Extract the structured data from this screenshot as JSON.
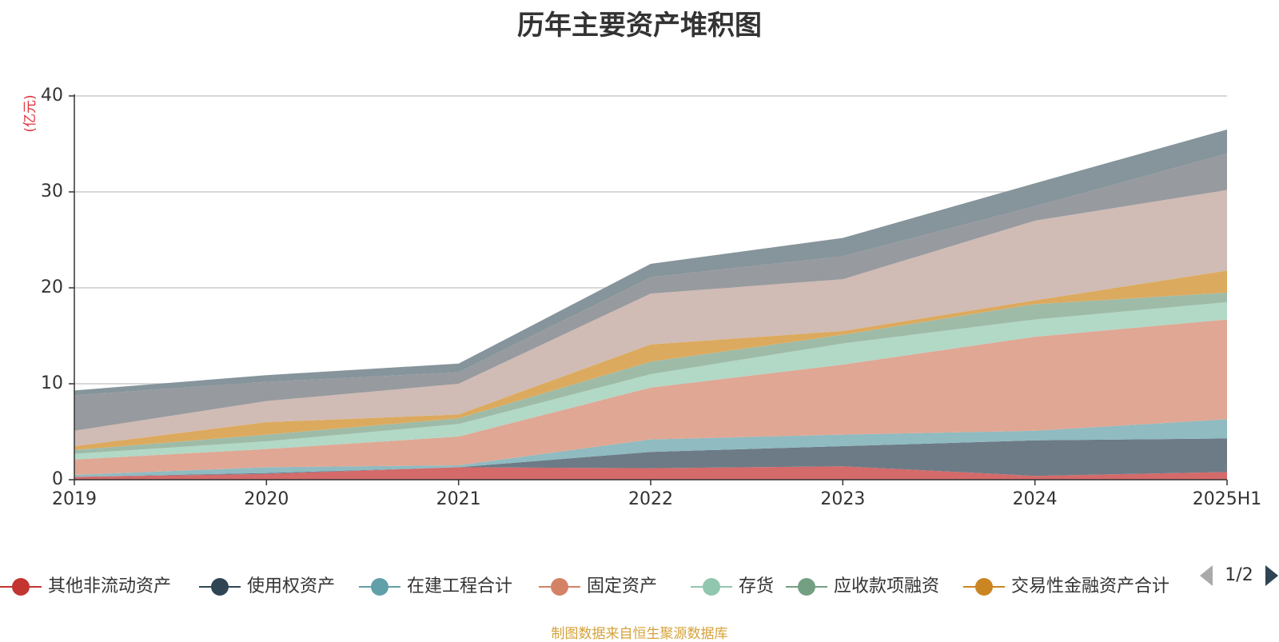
{
  "chart_data": {
    "type": "area",
    "stacked": true,
    "title": "历年主要资产堆积图",
    "ylabel": "(亿元)",
    "xlabel": "",
    "categories": [
      "2019",
      "2020",
      "2021",
      "2022",
      "2023",
      "2024",
      "2025H1"
    ],
    "ylim": [
      0,
      40
    ],
    "yticks": [
      0,
      10,
      20,
      30,
      40
    ],
    "grid": true,
    "legend_position": "bottom",
    "legend_page": "1/2",
    "series": [
      {
        "name": "其他非流动资产",
        "color": "#c23531",
        "area_color": "#d46a6a",
        "values": [
          0.3,
          0.6,
          1.3,
          1.2,
          1.4,
          0.4,
          0.8
        ]
      },
      {
        "name": "使用权资产",
        "color": "#2f4554",
        "area_color": "#6d7b86",
        "values": [
          0.0,
          0.1,
          0.0,
          1.7,
          2.1,
          3.7,
          3.5
        ]
      },
      {
        "name": "在建工程合计",
        "color": "#61a0a8",
        "area_color": "#8fbbc1",
        "values": [
          0.2,
          0.6,
          0.2,
          1.3,
          1.2,
          1.0,
          2.0
        ]
      },
      {
        "name": "固定资产",
        "color": "#d48265",
        "area_color": "#e0a794",
        "values": [
          1.6,
          1.9,
          3.0,
          5.4,
          7.3,
          9.8,
          10.4
        ]
      },
      {
        "name": "存货",
        "color": "#91c7ae",
        "area_color": "#b2d8c6",
        "values": [
          0.6,
          0.8,
          1.3,
          1.4,
          2.2,
          1.8,
          1.8
        ]
      },
      {
        "name": "应收款项融资",
        "color": "#749f83",
        "area_color": "#9ebba8",
        "values": [
          0.4,
          0.7,
          0.6,
          1.3,
          0.9,
          1.6,
          1.0
        ]
      },
      {
        "name": "交易性金融资产合计",
        "color": "#ca8622",
        "area_color": "#dcaa5e",
        "values": [
          0.4,
          1.3,
          0.4,
          1.8,
          0.4,
          0.4,
          2.3
        ]
      },
      {
        "name": "",
        "color": "#bda29a",
        "area_color": "#d0bbb5",
        "values": [
          1.6,
          2.2,
          3.2,
          5.3,
          5.4,
          8.3,
          8.4
        ]
      },
      {
        "name": "",
        "color": "#6e7074",
        "area_color": "#979a9e",
        "values": [
          3.7,
          2.0,
          1.2,
          1.7,
          2.4,
          1.5,
          3.8
        ]
      },
      {
        "name": "",
        "color": "#546570",
        "area_color": "#86949b",
        "values": [
          0.5,
          0.7,
          0.9,
          1.4,
          1.9,
          2.4,
          2.5
        ]
      }
    ]
  },
  "source_note": "制图数据来自恒生聚源数据库"
}
